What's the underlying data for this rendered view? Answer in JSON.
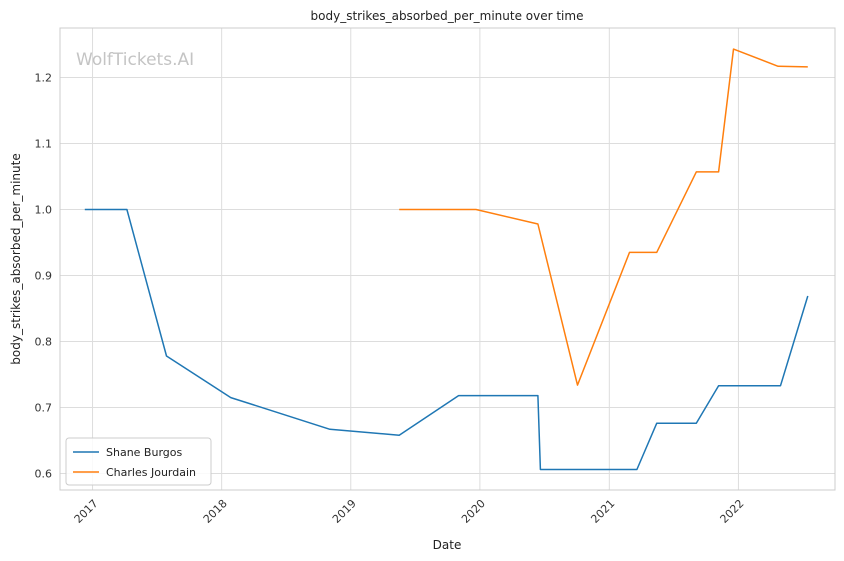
{
  "chart_data": {
    "type": "line",
    "title": "body_strikes_absorbed_per_minute over time",
    "xlabel": "Date",
    "ylabel": "body_strikes_absorbed_per_minute",
    "watermark": "WolfTickets.AI",
    "grid": true,
    "legend_position": "lower-left",
    "xlim": [
      "2016-10-01",
      "2022-10-01"
    ],
    "ylim": [
      0.575,
      1.275
    ],
    "x_ticks": [
      "2017-01-01",
      "2018-01-01",
      "2019-01-01",
      "2020-01-01",
      "2021-01-01",
      "2022-01-01"
    ],
    "x_tick_labels": [
      "2017",
      "2018",
      "2019",
      "2020",
      "2021",
      "2022"
    ],
    "y_ticks": [
      0.6,
      0.7,
      0.8,
      0.9,
      1.0,
      1.1,
      1.2
    ],
    "y_tick_labels": [
      "0.6",
      "0.7",
      "0.8",
      "0.9",
      "1.0",
      "1.1",
      "1.2"
    ],
    "series": [
      {
        "name": "Shane Burgos",
        "color": "#1f77b4",
        "points": [
          [
            "2016-12-10",
            1.0
          ],
          [
            "2017-04-08",
            1.0
          ],
          [
            "2017-07-29",
            0.778
          ],
          [
            "2018-01-27",
            0.715
          ],
          [
            "2018-11-03",
            0.667
          ],
          [
            "2019-05-18",
            0.658
          ],
          [
            "2019-11-02",
            0.718
          ],
          [
            "2020-06-13",
            0.718
          ],
          [
            "2020-06-20",
            0.606
          ],
          [
            "2021-03-20",
            0.606
          ],
          [
            "2021-05-15",
            0.676
          ],
          [
            "2021-09-04",
            0.676
          ],
          [
            "2021-11-06",
            0.733
          ],
          [
            "2022-04-30",
            0.733
          ],
          [
            "2022-07-16",
            0.869
          ]
        ]
      },
      {
        "name": "Charles Jourdain",
        "color": "#ff7f0e",
        "points": [
          [
            "2019-05-18",
            1.0
          ],
          [
            "2019-12-21",
            1.0
          ],
          [
            "2020-06-13",
            0.978
          ],
          [
            "2020-10-03",
            0.734
          ],
          [
            "2021-02-27",
            0.935
          ],
          [
            "2021-05-15",
            0.935
          ],
          [
            "2021-09-04",
            1.057
          ],
          [
            "2021-11-06",
            1.057
          ],
          [
            "2021-12-18",
            1.243
          ],
          [
            "2022-04-23",
            1.217
          ],
          [
            "2022-07-16",
            1.216
          ]
        ]
      }
    ]
  }
}
